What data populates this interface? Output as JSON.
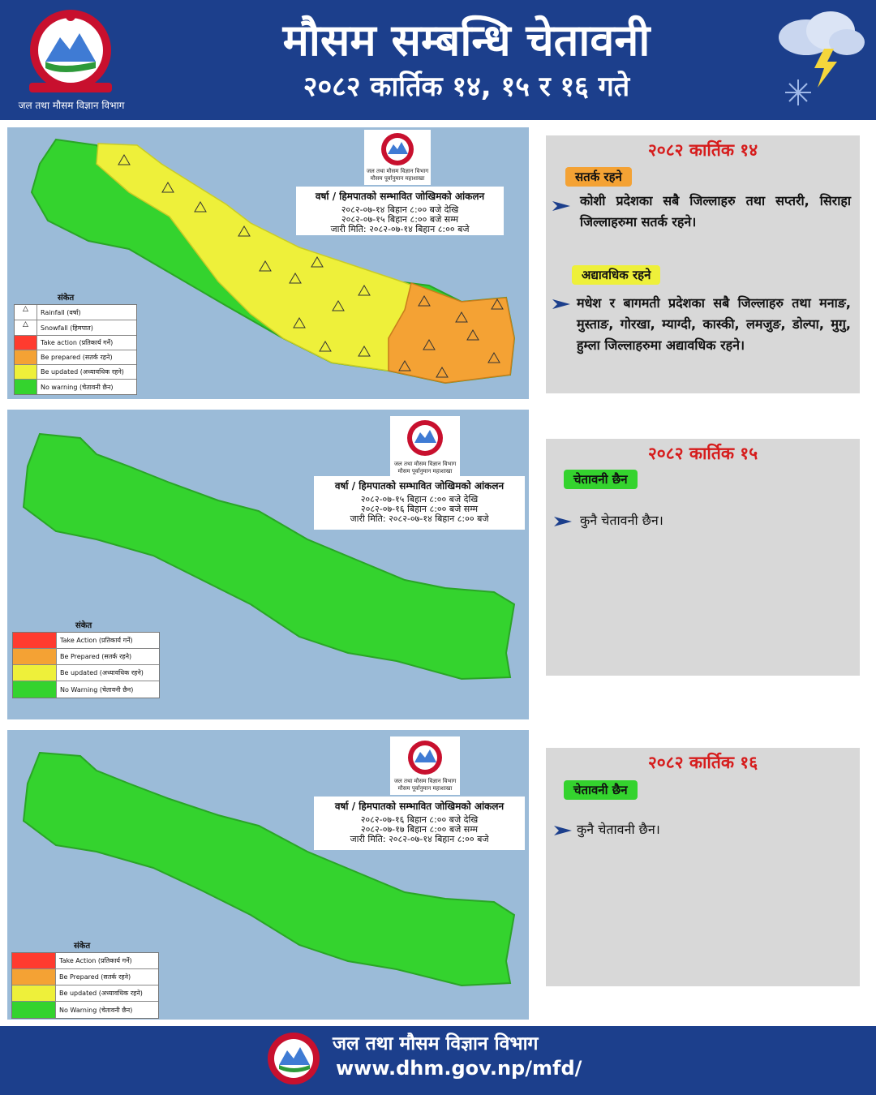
{
  "header": {
    "title": "मौसम सम्बन्धि चेतावनी",
    "subtitle": "२०८२ कार्तिक १४, १५ र १६ गते",
    "department": "जल तथा मौसम विज्ञान विभाग",
    "logo_icon": "government-emblem-icon",
    "weather_icon": "storm-cloud-snow-icon"
  },
  "colors": {
    "header_bg": "#1c3f8c",
    "date_red": "#d61c1c",
    "be_prepared": "#f4a234",
    "be_updated": "#eef03a",
    "no_warning": "#34d32e",
    "take_action": "#ff3b2f",
    "map_water": "#9bbbd8"
  },
  "maps": [
    {
      "logo_text": [
        "जल तथा मौसम विज्ञान विभाग",
        "मौसम पूर्वानुमान महाशाखा"
      ],
      "box_title": "वर्षा / हिमपातको सम्भावित जोखिमको आंकलन",
      "box_lines": [
        "२०८२-०७-१४ बिहान ८:०० बजे देखि",
        "२०८२-०७-१५ बिहान ८:०० बजे सम्म",
        "जारी मिति: २०८२-०७-१४ बिहान ८:०० बजे"
      ],
      "legend_heading": "संकेत",
      "legend": [
        {
          "label": "Rainfall (वर्षा)",
          "swatch": "rain-icon"
        },
        {
          "label": "Snowfall (हिमपात)",
          "swatch": "snow-icon"
        },
        {
          "label": "Take action (प्रतिकार्य गर्ने)",
          "swatch": "#ff3b2f"
        },
        {
          "label": "Be prepared (सतर्क रहने)",
          "swatch": "#f4a234"
        },
        {
          "label": "Be updated (अध्यावधिक रहने)",
          "swatch": "#eef03a"
        },
        {
          "label": "No warning (चेतावनी छैन)",
          "swatch": "#34d32e"
        }
      ]
    },
    {
      "logo_text": [
        "जल तथा मौसम विज्ञान विभाग",
        "मौसम पूर्वानुमान महाशाखा"
      ],
      "box_title": "वर्षा / हिमपातको सम्भावित जोखिमको आंकलन",
      "box_lines": [
        "२०८२-०७-१५ बिहान ८:०० बजे देखि",
        "२०८२-०७-१६ बिहान ८:०० बजे सम्म",
        "जारी मिति: २०८२-०७-१४ बिहान ८:०० बजे"
      ],
      "legend_heading": "संकेत",
      "legend": [
        {
          "label": "Take Action (प्रतिकार्य गर्ने)",
          "swatch": "#ff3b2f"
        },
        {
          "label": "Be Prepared (सतर्क रहने)",
          "swatch": "#f4a234"
        },
        {
          "label": "Be updated (अध्यावधिक रहने)",
          "swatch": "#eef03a"
        },
        {
          "label": "No Warning (चेतावनी छैन)",
          "swatch": "#34d32e"
        }
      ]
    },
    {
      "logo_text": [
        "जल तथा मौसम विज्ञान विभाग",
        "मौसम पूर्वानुमान महाशाखा"
      ],
      "box_title": "वर्षा / हिमपातको सम्भावित जोखिमको आंकलन",
      "box_lines": [
        "२०८२-०७-१६ बिहान ८:०० बजे देखि",
        "२०८२-०७-१७ बिहान ८:०० बजे सम्म",
        "जारी मिति: २०८२-०७-१४ बिहान ८:०० बजे"
      ],
      "legend_heading": "संकेत",
      "legend": [
        {
          "label": "Take Action (प्रतिकार्य गर्ने)",
          "swatch": "#ff3b2f"
        },
        {
          "label": "Be Prepared (सतर्क रहने)",
          "swatch": "#f4a234"
        },
        {
          "label": "Be updated (अध्यावधिक रहने)",
          "swatch": "#eef03a"
        },
        {
          "label": "No Warning (चेतावनी छैन)",
          "swatch": "#34d32e"
        }
      ]
    }
  ],
  "panels": [
    {
      "date": "२०८२ कार्तिक १४",
      "sections": [
        {
          "tag": "सतर्क रहने",
          "tag_color": "#f4a234",
          "text": "कोशी प्रदेशका सबै जिल्लाहरु तथा सप्तरी, सिराहा जिल्लाहरुमा सतर्क रहने।"
        },
        {
          "tag": "अद्यावधिक रहने",
          "tag_color": "#eef03a",
          "text": "मधेश र बागमती प्रदेशका सबै जिल्लाहरु तथा मनाङ, मुस्ताङ, गोरखा, म्याग्दी, कास्की, लमजुङ, डोल्पा, मुगु, हुम्ला जिल्लाहरुमा अद्यावधिक रहने।"
        }
      ]
    },
    {
      "date": "२०८२ कार्तिक १५",
      "sections": [
        {
          "tag": "चेतावनी छैन",
          "tag_color": "#34d32e",
          "text": "कुनै चेतावनी छैन।"
        }
      ]
    },
    {
      "date": "२०८२ कार्तिक १६",
      "sections": [
        {
          "tag": "चेतावनी छैन",
          "tag_color": "#34d32e",
          "text": "कुनै चेतावनी छैन।"
        }
      ]
    }
  ],
  "footer": {
    "department": "जल तथा मौसम विज्ञान विभाग",
    "url": "www.dhm.gov.np/mfd/",
    "logo_icon": "government-emblem-icon"
  }
}
